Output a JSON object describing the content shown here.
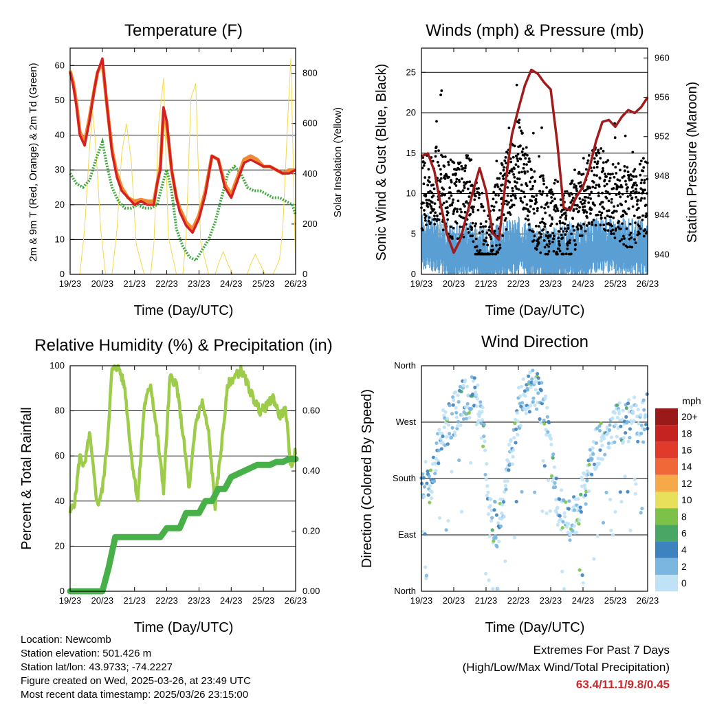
{
  "footer": {
    "location": "Location: Newcomb",
    "elevation": "Station elevation: 501.426 m",
    "latlon": "Station lat/lon: 43.9733; -74.2227",
    "created": "Figure created on Wed, 2025-03-26, at 23:49 UTC",
    "recent": "Most recent data timestamp: 2025/03/26 23:15:00"
  },
  "extremes": {
    "heading": "Extremes For Past 7 Days",
    "subheading": "(High/Low/Max Wind/Total Precipitation)",
    "values": "63.4/11.1/9.8/0.45",
    "value_color": "#cc2a2a"
  },
  "colors": {
    "temp_2m": "#d42020",
    "temp_9m": "#f08a30",
    "dewpoint": "#3ea83e",
    "solar": "#f5d84a",
    "wind": "#5a9fd4",
    "gust": "#000000",
    "pressure": "#a01c1c",
    "rh": "#9ccc4a",
    "precip": "#48b048"
  },
  "chart_data": [
    {
      "id": "temperature",
      "type": "line",
      "title": "Temperature (F)",
      "xlabel": "Time (Day/UTC)",
      "ylabel_left": "2m & 9m T (Red, Orange) & 2m Td (Green)",
      "ylabel_right": "Solar Insolation (Yellow)",
      "x_ticks": [
        "19/23",
        "20/23",
        "21/23",
        "22/23",
        "23/23",
        "24/23",
        "25/23",
        "26/23"
      ],
      "xlim": [
        0,
        7
      ],
      "ylim_left": [
        0,
        65
      ],
      "yticks_left": [
        "0",
        "10",
        "20",
        "30",
        "40",
        "50",
        "60"
      ],
      "ylim_right": [
        0,
        900
      ],
      "yticks_right": [
        "0",
        "200",
        "400",
        "600",
        "800"
      ],
      "series": [
        {
          "name": "2m T",
          "axis": "left",
          "x": [
            0,
            0.1,
            0.2,
            0.3,
            0.45,
            0.6,
            0.75,
            0.85,
            1.0,
            1.15,
            1.3,
            1.45,
            1.6,
            1.8,
            2.0,
            2.2,
            2.4,
            2.6,
            2.7,
            2.8,
            2.9,
            3.0,
            3.15,
            3.3,
            3.4,
            3.6,
            3.8,
            4.0,
            4.2,
            4.4,
            4.6,
            4.8,
            5.0,
            5.2,
            5.4,
            5.6,
            5.8,
            6.0,
            6.2,
            6.4,
            6.6,
            6.8,
            7.0
          ],
          "values": [
            58,
            54,
            48,
            40,
            37,
            44,
            53,
            58,
            62,
            48,
            35,
            28,
            24,
            22,
            20,
            21,
            20,
            20,
            26,
            30,
            48,
            44,
            30,
            22,
            18,
            14,
            12,
            16,
            23,
            34,
            33,
            25,
            22,
            27,
            32,
            33,
            32,
            31,
            31,
            30,
            29,
            29,
            30
          ]
        },
        {
          "name": "9m T",
          "axis": "left",
          "x": [
            0,
            0.1,
            0.2,
            0.3,
            0.45,
            0.6,
            0.75,
            0.85,
            1.0,
            1.15,
            1.3,
            1.45,
            1.6,
            1.8,
            2.0,
            2.2,
            2.4,
            2.6,
            2.7,
            2.8,
            2.9,
            3.0,
            3.15,
            3.3,
            3.4,
            3.6,
            3.8,
            4.0,
            4.2,
            4.4,
            4.6,
            4.8,
            5.0,
            5.2,
            5.4,
            5.6,
            5.8,
            6.0,
            6.2,
            6.4,
            6.6,
            6.8,
            7.0
          ],
          "values": [
            58.5,
            55,
            49,
            41,
            38,
            45,
            53,
            58,
            61,
            48,
            36,
            29,
            25,
            22,
            21,
            21.5,
            21,
            21,
            26,
            31,
            47,
            43,
            30,
            22,
            19,
            15,
            13,
            17,
            24,
            34,
            33,
            26,
            23,
            28,
            33,
            34,
            33,
            31,
            31,
            30,
            29,
            30,
            30
          ]
        },
        {
          "name": "2m Td",
          "axis": "left",
          "x": [
            0,
            0.2,
            0.4,
            0.6,
            0.8,
            1.0,
            1.15,
            1.3,
            1.5,
            1.7,
            1.9,
            2.1,
            2.3,
            2.5,
            2.7,
            2.9,
            3.0,
            3.15,
            3.3,
            3.5,
            3.7,
            3.9,
            4.1,
            4.3,
            4.5,
            4.7,
            4.9,
            5.1,
            5.3,
            5.5,
            5.7,
            5.9,
            6.1,
            6.3,
            6.5,
            6.7,
            6.9,
            7.0
          ],
          "values": [
            29,
            26,
            25,
            27,
            33,
            38,
            31,
            25,
            21,
            19,
            19,
            20,
            19,
            19,
            20,
            27,
            30,
            24,
            13,
            8,
            5,
            4,
            7,
            10,
            15,
            22,
            29,
            31,
            29,
            25,
            24,
            24,
            23,
            22,
            22,
            21,
            20,
            17
          ]
        },
        {
          "name": "Solar",
          "axis": "right",
          "x": [
            0,
            0.3,
            0.45,
            0.6,
            0.7,
            0.8,
            0.95,
            1.1,
            1.3,
            1.45,
            1.6,
            1.75,
            1.9,
            2.05,
            2.3,
            2.5,
            2.6,
            2.75,
            2.9,
            3.05,
            3.3,
            3.5,
            3.6,
            3.75,
            3.9,
            4.05,
            4.3,
            4.5,
            4.6,
            4.75,
            4.9,
            5.05,
            5.3,
            5.5,
            5.6,
            5.75,
            5.9,
            6.05,
            6.3,
            6.5,
            6.6,
            6.75,
            6.85,
            6.95,
            7.0
          ],
          "values": [
            0,
            0,
            180,
            500,
            650,
            500,
            180,
            0,
            0,
            170,
            480,
            600,
            450,
            120,
            0,
            0,
            120,
            600,
            780,
            150,
            0,
            0,
            150,
            700,
            760,
            130,
            0,
            0,
            40,
            90,
            40,
            0,
            0,
            0,
            40,
            80,
            40,
            0,
            0,
            60,
            180,
            600,
            860,
            300,
            0
          ]
        }
      ]
    },
    {
      "id": "winds",
      "type": "scatter",
      "title": "Winds (mph) & Pressure (mb)",
      "xlabel": "Time (Day/UTC)",
      "ylabel_left": "Sonic Wind & Gust (Blue, Black)",
      "ylabel_right": "Station Pressure (Maroon)",
      "x_ticks": [
        "19/23",
        "20/23",
        "21/23",
        "22/23",
        "23/23",
        "24/23",
        "25/23",
        "26/23"
      ],
      "xlim": [
        0,
        7
      ],
      "ylim_left": [
        0,
        28
      ],
      "yticks_left": [
        "0",
        "5",
        "10",
        "15",
        "20",
        "25"
      ],
      "ylim_right": [
        938.0,
        961.0
      ],
      "yticks_right": [
        "940",
        "944",
        "948",
        "952",
        "956",
        "960"
      ],
      "series": [
        {
          "name": "Sonic Wind (Blue) baseline",
          "axis": "left",
          "x": [
            0,
            0.5,
            1.0,
            1.5,
            2.0,
            2.5,
            3.0,
            3.5,
            4.0,
            4.5,
            5.0,
            5.5,
            6.0,
            6.5,
            7.0
          ],
          "values": [
            3.5,
            3.2,
            2.0,
            2.6,
            1.5,
            2.3,
            3.0,
            2.2,
            1.5,
            2.4,
            2.4,
            3.0,
            2.9,
            2.8,
            2.5
          ]
        },
        {
          "name": "Gust (Black) baseline",
          "axis": "left",
          "x": [
            0,
            0.5,
            1.0,
            1.5,
            2.0,
            2.5,
            3.0,
            3.5,
            4.0,
            4.5,
            5.0,
            5.5,
            6.0,
            6.5,
            7.0
          ],
          "values": [
            10,
            11,
            9,
            10,
            2,
            9,
            15,
            8,
            7,
            6,
            10,
            11,
            9,
            8,
            10
          ]
        },
        {
          "name": "Station Pressure",
          "axis": "right",
          "x": [
            0,
            0.2,
            0.4,
            0.6,
            0.8,
            1.0,
            1.2,
            1.4,
            1.6,
            1.8,
            2.0,
            2.2,
            2.4,
            2.6,
            2.8,
            3.0,
            3.2,
            3.4,
            3.6,
            3.8,
            4.0,
            4.2,
            4.4,
            4.6,
            4.8,
            5.0,
            5.2,
            5.4,
            5.6,
            5.8,
            6.0,
            6.2,
            6.4,
            6.6,
            6.8,
            7.0
          ],
          "values": [
            950,
            950.3,
            948.5,
            945,
            942,
            940.2,
            941.5,
            944,
            946.5,
            948.8,
            946.5,
            942.2,
            941.5,
            947.3,
            952.2,
            954.8,
            957.2,
            958.8,
            958.4,
            957.5,
            956.8,
            951.5,
            944.8,
            944.5,
            945.9,
            946.9,
            948.8,
            951.5,
            953.5,
            953.7,
            953.0,
            954.0,
            954.7,
            954.4,
            955.0,
            956.0
          ]
        }
      ]
    },
    {
      "id": "rh_precip",
      "type": "line",
      "title": "Relative Humidity (%) & Precipitation (in)",
      "xlabel": "Time (Day/UTC)",
      "ylabel_left": "Percent & Total Rainfall",
      "x_ticks": [
        "19/23",
        "20/23",
        "21/23",
        "22/23",
        "23/23",
        "24/23",
        "25/23",
        "26/23"
      ],
      "xlim": [
        0,
        7
      ],
      "ylim_left": [
        0,
        100
      ],
      "yticks_left": [
        "0",
        "20",
        "40",
        "60",
        "80",
        "100"
      ],
      "ylim_right": [
        0,
        0.75
      ],
      "yticks_right": [
        "0.00",
        "0.20",
        "0.40",
        "0.60"
      ],
      "series": [
        {
          "name": "Relative Humidity",
          "axis": "left",
          "x": [
            0,
            0.15,
            0.3,
            0.45,
            0.6,
            0.75,
            0.85,
            1.0,
            1.15,
            1.3,
            1.5,
            1.7,
            1.9,
            2.1,
            2.3,
            2.5,
            2.7,
            2.9,
            3.1,
            3.3,
            3.5,
            3.7,
            3.9,
            4.1,
            4.3,
            4.5,
            4.7,
            4.9,
            5.1,
            5.3,
            5.5,
            5.7,
            5.9,
            6.1,
            6.3,
            6.5,
            6.7,
            6.85,
            7.0
          ],
          "values": [
            35,
            40,
            60,
            55,
            70,
            50,
            38,
            45,
            65,
            98,
            100,
            90,
            60,
            40,
            82,
            92,
            70,
            45,
            95,
            92,
            70,
            45,
            75,
            84,
            70,
            38,
            65,
            92,
            95,
            98,
            92,
            85,
            80,
            82,
            86,
            78,
            80,
            55,
            62
          ]
        },
        {
          "name": "Total Precipitation",
          "axis": "right",
          "x": [
            0,
            0.4,
            0.8,
            1.0,
            1.2,
            1.4,
            1.6,
            1.8,
            2.0,
            2.2,
            2.4,
            2.6,
            2.8,
            3.0,
            3.2,
            3.4,
            3.6,
            3.8,
            4.0,
            4.2,
            4.4,
            4.6,
            4.8,
            5.0,
            5.2,
            5.4,
            5.6,
            5.8,
            6.0,
            6.2,
            6.4,
            6.6,
            6.8,
            7.0
          ],
          "values": [
            0,
            0,
            0,
            0,
            0.08,
            0.18,
            0.18,
            0.18,
            0.18,
            0.18,
            0.18,
            0.18,
            0.18,
            0.21,
            0.21,
            0.21,
            0.26,
            0.26,
            0.26,
            0.3,
            0.3,
            0.34,
            0.34,
            0.38,
            0.39,
            0.4,
            0.41,
            0.42,
            0.42,
            0.42,
            0.43,
            0.43,
            0.44,
            0.44
          ]
        }
      ]
    },
    {
      "id": "wind_direction",
      "type": "scatter",
      "title": "Wind Direction",
      "xlabel": "Time (Day/UTC)",
      "ylabel_left": "Direction (Colored By Speed)",
      "x_ticks": [
        "19/23",
        "20/23",
        "21/23",
        "22/23",
        "23/23",
        "24/23",
        "25/23",
        "26/23"
      ],
      "xlim": [
        0,
        7
      ],
      "ylim_left": [
        0,
        360
      ],
      "yticks_left": [
        "North",
        "East",
        "South",
        "West",
        "North"
      ],
      "ytick_values": [
        0,
        90,
        180,
        270,
        360
      ],
      "series": [
        {
          "name": "Dominant direction (deg)",
          "axis": "left",
          "x": [
            0,
            0.3,
            0.6,
            1.0,
            1.3,
            1.6,
            1.9,
            2.1,
            2.4,
            2.7,
            3.0,
            3.3,
            3.6,
            3.9,
            4.2,
            4.5,
            4.8,
            5.1,
            5.4,
            5.7,
            6.0,
            6.3,
            6.6,
            6.9,
            7.0
          ],
          "values": [
            190,
            160,
            250,
            280,
            305,
            315,
            270,
            120,
            100,
            200,
            290,
            320,
            315,
            280,
            140,
            110,
            120,
            175,
            230,
            250,
            265,
            270,
            275,
            270,
            285
          ]
        }
      ],
      "legend": {
        "title": "mph",
        "labels": [
          "20+",
          "18",
          "16",
          "14",
          "12",
          "10",
          "8",
          "6",
          "4",
          "2",
          "0"
        ],
        "colors": [
          "#9a1a1a",
          "#c52222",
          "#e03a2a",
          "#f06838",
          "#f6a948",
          "#e8e05a",
          "#7cc248",
          "#4aa664",
          "#3e82c0",
          "#7ab6e0",
          "#bfe2f6"
        ]
      }
    }
  ]
}
